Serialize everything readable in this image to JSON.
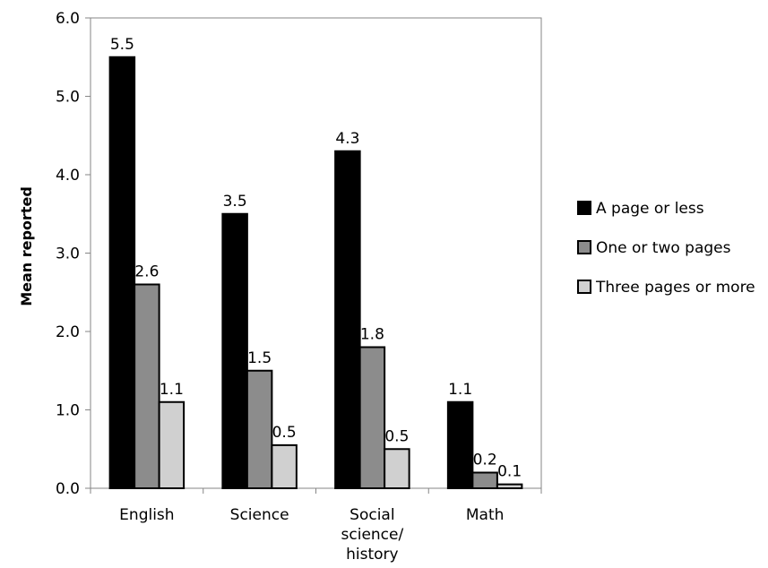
{
  "chart_data": {
    "type": "bar",
    "categories": [
      "English",
      "Science",
      "Social science/ history",
      "Math"
    ],
    "category_label_lines": [
      [
        "English"
      ],
      [
        "Science"
      ],
      [
        "Social",
        "science/",
        "history"
      ],
      [
        "Math"
      ]
    ],
    "series": [
      {
        "name": "A page or less",
        "values": [
          5.5,
          3.5,
          4.3,
          1.1
        ],
        "labels": [
          "5.5",
          "3.5",
          "4.3",
          "1.1"
        ],
        "color": "#000000"
      },
      {
        "name": "One or two pages",
        "values": [
          2.6,
          1.5,
          1.8,
          0.2
        ],
        "labels": [
          "2.6",
          "1.5",
          "1.8",
          "0.2"
        ],
        "color": "#8c8c8c"
      },
      {
        "name": "Three pages or more",
        "values": [
          1.1,
          0.55,
          0.5,
          0.05
        ],
        "labels": [
          "1.1",
          "0.5",
          "0.5",
          "0.1"
        ],
        "color": "#d0d0d0"
      }
    ],
    "title": "",
    "xlabel": "",
    "ylabel": "Mean reported",
    "ylim": [
      0,
      6
    ],
    "yticks": [
      "0.0",
      "1.0",
      "2.0",
      "3.0",
      "4.0",
      "5.0",
      "6.0"
    ],
    "grid": false,
    "legend_position": "right"
  }
}
